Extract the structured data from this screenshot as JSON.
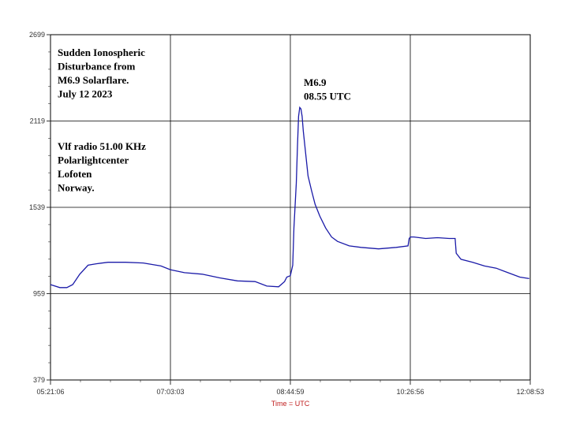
{
  "chart_data": {
    "type": "line",
    "xlabel": "Time = UTC",
    "ylabel": "",
    "x_ticks": [
      "05:21:06",
      "07:03:03",
      "08:44:59",
      "10:26:56",
      "12:08:53"
    ],
    "y_ticks": [
      379,
      959,
      1539,
      2119,
      2699
    ],
    "ylim": [
      379,
      2699
    ],
    "grid": true,
    "colors": {
      "line": "#1a1aa8",
      "grid": "#000000"
    },
    "annotation_lines": [
      "Sudden Ionospheric",
      "Disturbance from",
      "M6.9 Solarflare.",
      "July 12  2023"
    ],
    "info_lines": [
      "Vlf radio 51.00 KHz",
      "Polarlightcenter",
      "Lofoten",
      "Norway."
    ],
    "peak_lines": [
      "M6.9",
      "08.55 UTC"
    ],
    "series": [
      {
        "x": [
          "05:21",
          "05:29",
          "05:35",
          "05:40",
          "05:46",
          "05:53",
          "06:00",
          "06:10",
          "06:25",
          "06:40",
          "06:55",
          "07:03",
          "07:15",
          "07:30",
          "07:45",
          "08:00",
          "08:15",
          "08:25",
          "08:35",
          "08:40",
          "08:42",
          "08:45",
          "08:47",
          "08:48",
          "08:50",
          "08:51",
          "08:52",
          "08:53",
          "08:54",
          "08:55",
          "08:56",
          "08:58",
          "09:00",
          "09:03",
          "09:06",
          "09:10",
          "09:15",
          "09:20",
          "09:25",
          "09:35",
          "09:45",
          "10:00",
          "10:15",
          "10:25",
          "10:26",
          "10:27",
          "10:30",
          "10:40",
          "10:50",
          "11:00",
          "11:05",
          "11:06",
          "11:10",
          "11:20",
          "11:30",
          "11:40",
          "11:50",
          "12:00",
          "12:08"
        ],
        "values": [
          1020,
          1000,
          1000,
          1020,
          1090,
          1150,
          1160,
          1170,
          1170,
          1165,
          1145,
          1120,
          1100,
          1090,
          1065,
          1045,
          1040,
          1010,
          1005,
          1040,
          1070,
          1080,
          1150,
          1400,
          1700,
          1950,
          2150,
          2210,
          2200,
          2150,
          2050,
          1900,
          1750,
          1650,
          1560,
          1480,
          1400,
          1340,
          1310,
          1280,
          1270,
          1260,
          1270,
          1280,
          1330,
          1340,
          1340,
          1330,
          1335,
          1330,
          1330,
          1230,
          1190,
          1170,
          1145,
          1130,
          1100,
          1070,
          1060
        ]
      }
    ]
  }
}
